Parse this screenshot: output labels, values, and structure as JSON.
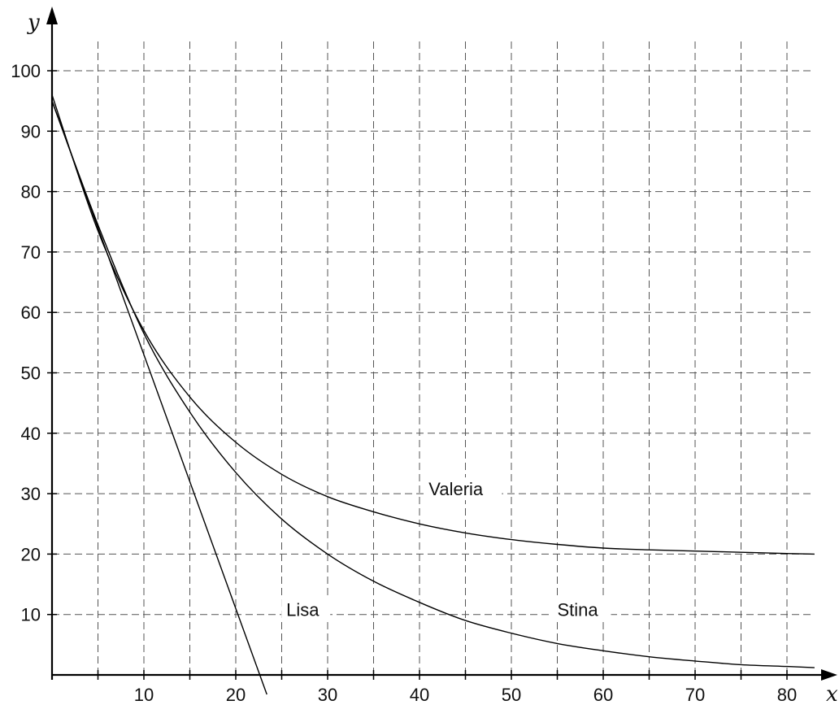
{
  "chart_data": {
    "type": "line",
    "xlabel": "x",
    "ylabel": "y",
    "xlim": [
      0,
      84
    ],
    "ylim": [
      0,
      105
    ],
    "grid": true,
    "x_gridlines_every": 5,
    "y_gridlines_every": 10,
    "x_ticks": [
      "10",
      "20",
      "30",
      "40",
      "50",
      "60",
      "70",
      "80"
    ],
    "y_ticks": [
      "10",
      "20",
      "30",
      "40",
      "50",
      "60",
      "70",
      "80",
      "90",
      "100"
    ],
    "series": [
      {
        "name": "Lisa",
        "x": [
          0,
          5,
          10,
          15,
          20,
          22.5
        ],
        "y": [
          95,
          74,
          53,
          32,
          11,
          0
        ]
      },
      {
        "name": "Stina",
        "x": [
          0,
          5,
          10,
          15,
          20,
          25,
          30,
          35,
          40,
          45,
          50,
          55,
          60,
          65,
          70,
          75,
          80,
          83
        ],
        "y": [
          95,
          74.5,
          56.5,
          43.5,
          33.5,
          25.8,
          20,
          15.5,
          12,
          9,
          6.9,
          5.2,
          4,
          3,
          2.3,
          1.7,
          1.4,
          1.2
        ]
      },
      {
        "name": "Valeria",
        "x": [
          0,
          5,
          10,
          15,
          20,
          25,
          30,
          35,
          40,
          45,
          50,
          55,
          60,
          65,
          70,
          75,
          80,
          83
        ],
        "y": [
          96,
          73.5,
          57,
          46,
          38.5,
          33.2,
          29.5,
          27,
          25,
          23.5,
          22.4,
          21.6,
          21,
          20.7,
          20.5,
          20.3,
          20.1,
          20
        ]
      }
    ],
    "annotations": [
      {
        "text": "Valeria",
        "x": 41,
        "y": 30
      },
      {
        "text": "Lisa",
        "x": 25.5,
        "y": 10
      },
      {
        "text": "Stina",
        "x": 55,
        "y": 10
      }
    ]
  }
}
